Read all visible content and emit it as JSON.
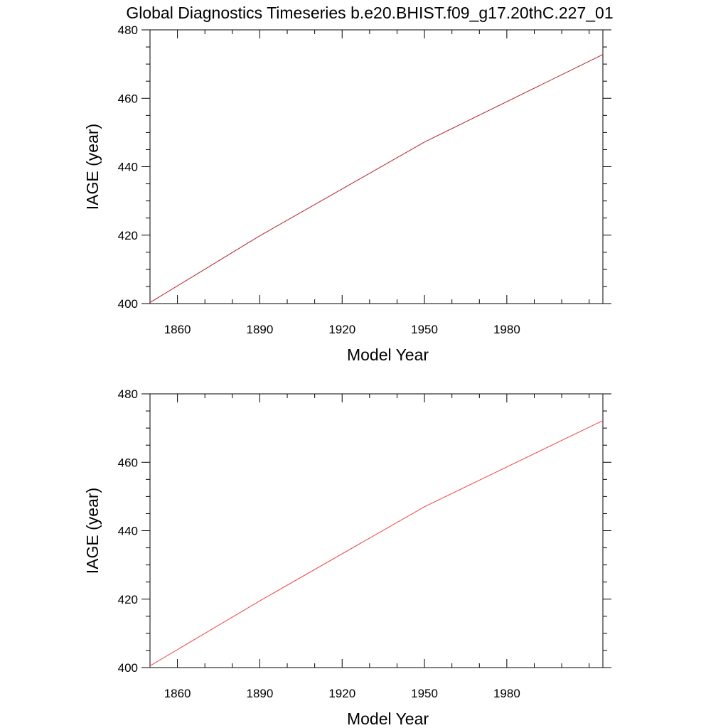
{
  "figure": {
    "title": "Global Diagnostics Timeseries b.e20.BHIST.f09_g17.20thC.227_01"
  },
  "chart_data": [
    {
      "type": "line",
      "xlabel": "Model Year",
      "ylabel": "IAGE (year)",
      "xlim": [
        1850,
        2015
      ],
      "ylim": [
        400,
        480
      ],
      "x_major_ticks": [
        1860,
        1890,
        1920,
        1950,
        1980
      ],
      "x_minor_step": 10,
      "y_major_ticks": [
        400,
        420,
        440,
        460,
        480
      ],
      "y_minor_step": 5,
      "grid": false,
      "series": [
        {
          "color": "#b0202a",
          "x": [
            1850,
            1890,
            1950,
            2015
          ],
          "y": [
            400.3,
            419.8,
            447.2,
            472.8
          ]
        }
      ]
    },
    {
      "type": "line",
      "xlabel": "Model Year",
      "ylabel": "IAGE (year)",
      "xlim": [
        1850,
        2015
      ],
      "ylim": [
        400,
        480
      ],
      "x_major_ticks": [
        1860,
        1890,
        1920,
        1950,
        1980
      ],
      "x_minor_step": 10,
      "y_major_ticks": [
        400,
        420,
        440,
        460,
        480
      ],
      "y_minor_step": 5,
      "grid": false,
      "series": [
        {
          "color": "#ee4444",
          "x": [
            1850,
            1890,
            1950,
            2015
          ],
          "y": [
            400.5,
            419.5,
            447.0,
            472.2
          ]
        }
      ]
    }
  ]
}
